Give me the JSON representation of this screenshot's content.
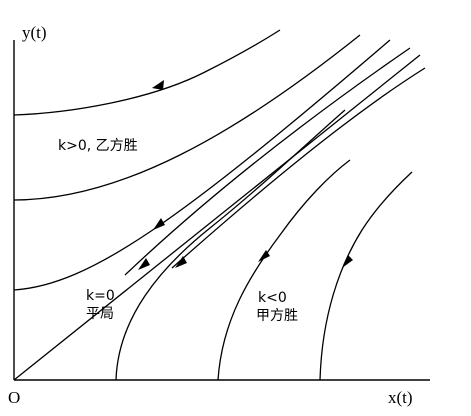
{
  "axes": {
    "y_label": "y(t)",
    "x_label": "x(t)",
    "origin_label": "O"
  },
  "annotations": {
    "k_positive": "k>0, 乙方胜",
    "k_zero_line1": "k=0",
    "k_zero_line2": "平局",
    "k_negative_line1": "k<0",
    "k_negative_line2": "甲方胜"
  }
}
